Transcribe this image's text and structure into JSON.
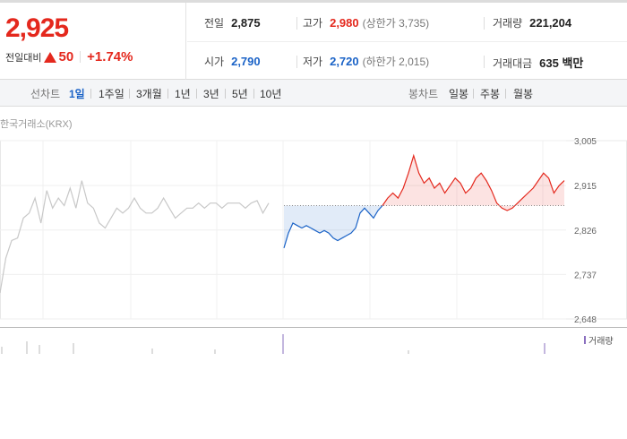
{
  "quote": {
    "price": "2,925",
    "change_label": "전일대비",
    "change_amount": "50",
    "change_pct": "+1.74%",
    "up_color": "#e4281d",
    "down_color": "#1b63c7"
  },
  "stats": {
    "prev_close": {
      "label": "전일",
      "value": "2,875"
    },
    "high": {
      "label": "고가",
      "value": "2,980",
      "sub": "(상한가 3,735)"
    },
    "volume": {
      "label": "거래량",
      "value": "221,204"
    },
    "open": {
      "label": "시가",
      "value": "2,790"
    },
    "low": {
      "label": "저가",
      "value": "2,720",
      "sub": "(하한가 2,015)"
    },
    "trade_value": {
      "label": "거래대금",
      "value": "635 백만"
    }
  },
  "tabs": {
    "line_label": "선차트",
    "line_periods": [
      "1일",
      "1주일",
      "3개월",
      "1년",
      "3년",
      "5년",
      "10년"
    ],
    "active_period": "1일",
    "candle_label": "봉차트",
    "candle_periods": [
      "일봉",
      "주봉",
      "월봉"
    ]
  },
  "chart": {
    "source": "한국거래소(KRX)",
    "volume_legend": "거래량",
    "y_ticks": [
      "3,005",
      "2,915",
      "2,826",
      "2,737",
      "2,648"
    ]
  },
  "chart_data": {
    "type": "line",
    "title": "",
    "y_ticks": [
      3005,
      2915,
      2826,
      2737,
      2648
    ],
    "ylim": [
      2648,
      3005
    ],
    "baseline_prev_close": 2875,
    "series": [
      {
        "values": [
          2700,
          2770,
          2805,
          2810,
          2850,
          2860,
          2890,
          2840,
          2905,
          2870,
          2890,
          2875,
          2910,
          2870,
          2925,
          2880,
          2870,
          2840,
          2830,
          2850,
          2870,
          2860,
          2870,
          2890,
          2870,
          2860,
          2860,
          2870,
          2890,
          2870,
          2850,
          2860,
          2870,
          2870,
          2880,
          2870,
          2880,
          2880,
          2870,
          2880,
          2880,
          2880,
          2870,
          2880,
          2885,
          2860,
          2880
        ]
      },
      {
        "values": [
          2790,
          2820,
          2840,
          2835,
          2830,
          2835,
          2830,
          2825,
          2820,
          2825,
          2820,
          2810,
          2805,
          2810,
          2815,
          2820,
          2830,
          2860,
          2870,
          2860,
          2850,
          2865,
          2875
        ]
      },
      {
        "values": [
          2875,
          2890,
          2900,
          2890,
          2910,
          2940,
          2975,
          2940,
          2920,
          2930,
          2910,
          2920,
          2900,
          2915,
          2930,
          2920,
          2900,
          2910,
          2930,
          2940,
          2925,
          2905,
          2880,
          2870,
          2865,
          2870,
          2880,
          2890,
          2900,
          2910,
          2925,
          2940,
          2930,
          2900,
          2915,
          2925
        ]
      }
    ]
  }
}
